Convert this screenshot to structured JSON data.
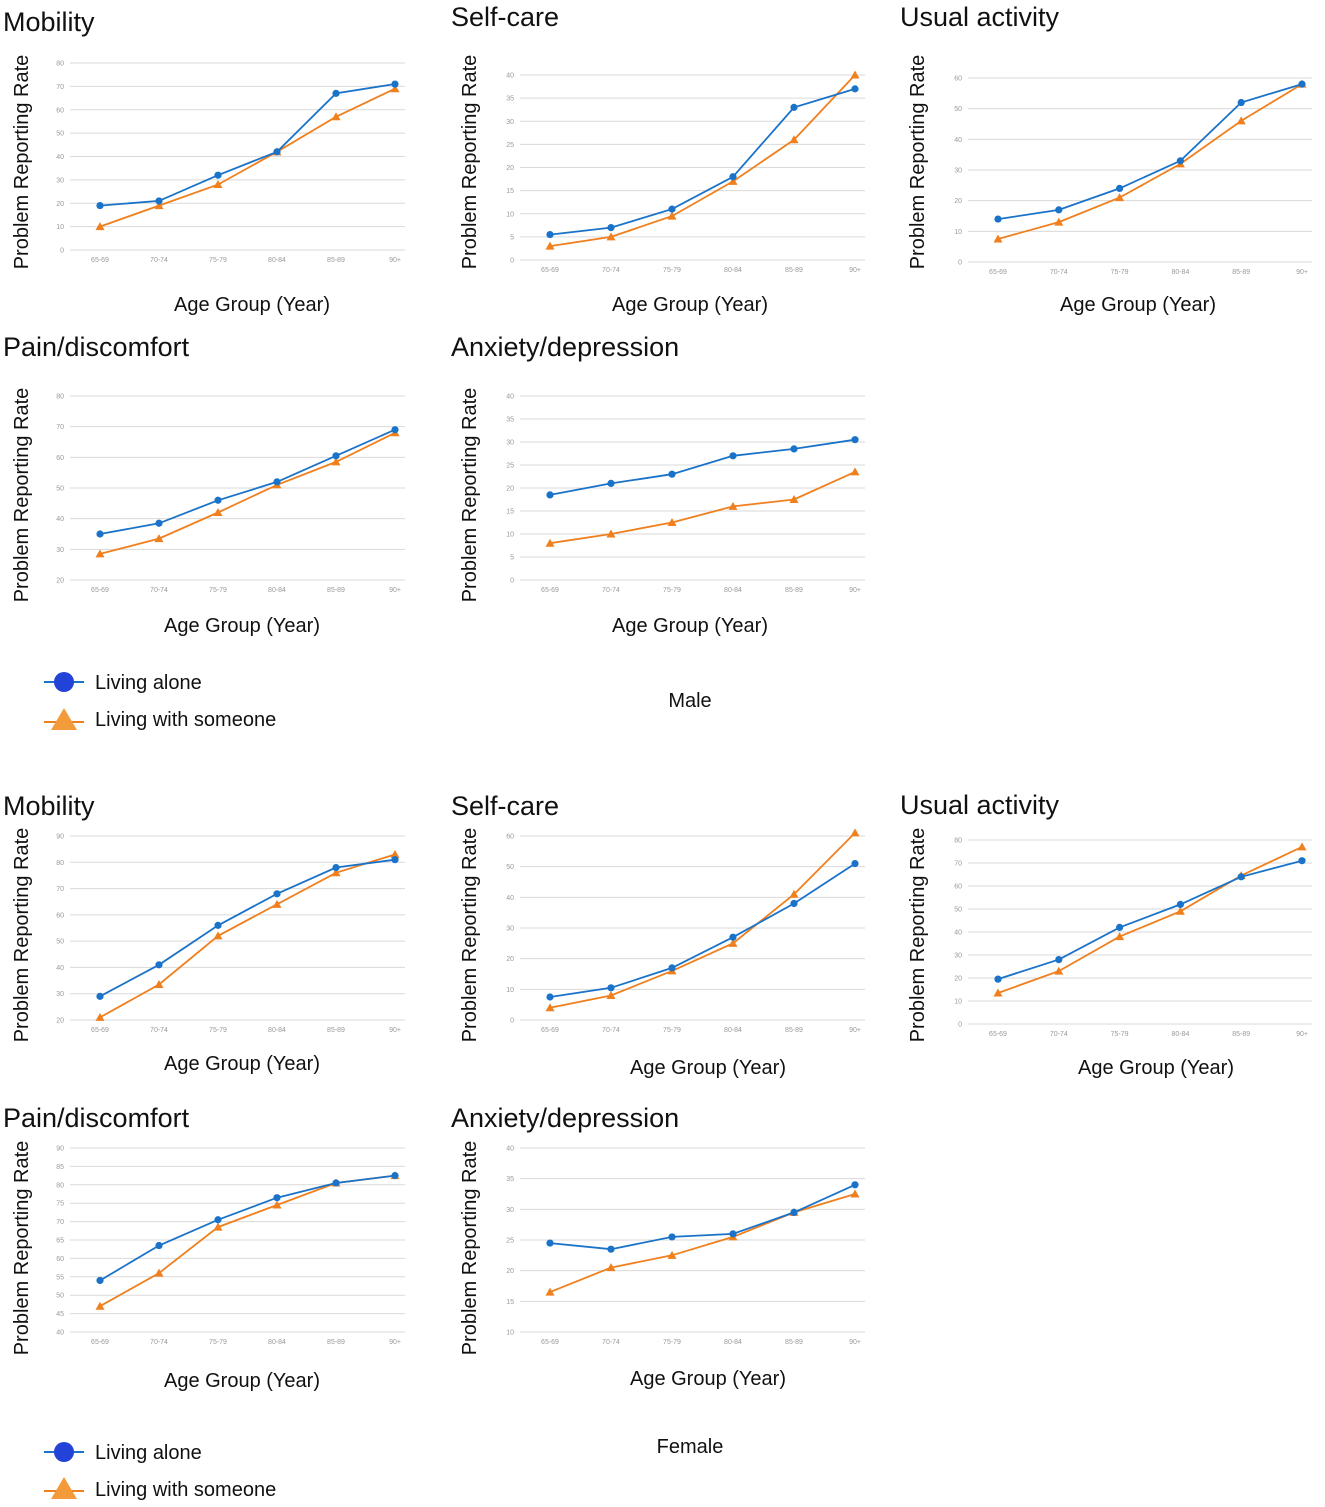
{
  "figure": {
    "legend": {
      "living_alone": "Living alone",
      "living_with_someone": "Living with someone"
    },
    "colors": {
      "living_alone": "#1a73c8",
      "living_with_someone": "#f07f1e"
    },
    "group_captions": {
      "male": "Male",
      "female": "Female"
    }
  },
  "chart_data": [
    {
      "id": "male-mobility",
      "group": "Male",
      "type": "line",
      "title": "Mobility",
      "xlabel": "Age Group (Year)",
      "ylabel": "Problem Reporting Rate",
      "categories": [
        "65-69",
        "70-74",
        "75-79",
        "80-84",
        "85-89",
        "90+"
      ],
      "ylim": [
        0,
        80
      ],
      "yticks": [
        0,
        10,
        20,
        30,
        40,
        50,
        60,
        70,
        80
      ],
      "series": [
        {
          "name": "Living alone",
          "values": [
            19,
            21,
            32,
            42,
            67,
            71
          ]
        },
        {
          "name": "Living with someone",
          "values": [
            10,
            19,
            28,
            42,
            57,
            69
          ]
        }
      ]
    },
    {
      "id": "male-self-care",
      "group": "Male",
      "type": "line",
      "title": "Self-care",
      "xlabel": "Age Group (Year)",
      "ylabel": "Problem Reporting Rate",
      "categories": [
        "65-69",
        "70-74",
        "75-79",
        "80-84",
        "85-89",
        "90+"
      ],
      "ylim": [
        0,
        40
      ],
      "yticks": [
        0,
        5,
        10,
        15,
        20,
        25,
        30,
        35,
        40
      ],
      "series": [
        {
          "name": "Living alone",
          "values": [
            5.5,
            7,
            11,
            18,
            33,
            37
          ]
        },
        {
          "name": "Living with someone",
          "values": [
            3,
            5,
            9.5,
            17,
            26,
            40
          ]
        }
      ]
    },
    {
      "id": "male-usual-activity",
      "group": "Male",
      "type": "line",
      "title": "Usual activity",
      "xlabel": "Age Group (Year)",
      "ylabel": "Problem Reporting Rate",
      "categories": [
        "65-69",
        "70-74",
        "75-79",
        "80-84",
        "85-89",
        "90+"
      ],
      "ylim": [
        0,
        60
      ],
      "yticks": [
        0,
        10,
        20,
        30,
        40,
        50,
        60
      ],
      "series": [
        {
          "name": "Living alone",
          "values": [
            14,
            17,
            24,
            33,
            52,
            58
          ]
        },
        {
          "name": "Living with someone",
          "values": [
            7.5,
            13,
            21,
            32,
            46,
            58
          ]
        }
      ]
    },
    {
      "id": "male-pain-discomfort",
      "group": "Male",
      "type": "line",
      "title": "Pain/discomfort",
      "xlabel": "Age Group (Year)",
      "ylabel": "Problem Reporting Rate",
      "categories": [
        "65-69",
        "70-74",
        "75-79",
        "80-84",
        "85-89",
        "90+"
      ],
      "ylim": [
        20,
        80
      ],
      "yticks": [
        20,
        30,
        40,
        50,
        60,
        70,
        80
      ],
      "series": [
        {
          "name": "Living alone",
          "values": [
            35,
            38.5,
            46,
            52,
            60.5,
            69
          ]
        },
        {
          "name": "Living with someone",
          "values": [
            28.5,
            33.5,
            42,
            51,
            58.5,
            68
          ]
        }
      ]
    },
    {
      "id": "male-anxiety-depression",
      "group": "Male",
      "type": "line",
      "title": "Anxiety/depression",
      "xlabel": "Age Group (Year)",
      "ylabel": "Problem Reporting Rate",
      "categories": [
        "65-69",
        "70-74",
        "75-79",
        "80-84",
        "85-89",
        "90+"
      ],
      "ylim": [
        0,
        40
      ],
      "yticks": [
        0,
        5,
        10,
        15,
        20,
        25,
        30,
        35,
        40
      ],
      "series": [
        {
          "name": "Living alone",
          "values": [
            18.5,
            21,
            23,
            27,
            28.5,
            30.5
          ]
        },
        {
          "name": "Living with someone",
          "values": [
            8,
            10,
            12.5,
            16,
            17.5,
            23.5
          ]
        }
      ]
    },
    {
      "id": "female-mobility",
      "group": "Female",
      "type": "line",
      "title": "Mobility",
      "xlabel": "Age Group (Year)",
      "ylabel": "Problem Reporting Rate",
      "categories": [
        "65-69",
        "70-74",
        "75-79",
        "80-84",
        "85-89",
        "90+"
      ],
      "ylim": [
        20,
        90
      ],
      "yticks": [
        20,
        30,
        40,
        50,
        60,
        70,
        80,
        90
      ],
      "series": [
        {
          "name": "Living alone",
          "values": [
            29,
            41,
            56,
            68,
            78,
            81
          ]
        },
        {
          "name": "Living with someone",
          "values": [
            21,
            33.5,
            52,
            64,
            76,
            83
          ]
        }
      ]
    },
    {
      "id": "female-self-care",
      "group": "Female",
      "type": "line",
      "title": "Self-care",
      "xlabel": "Age Group (Year)",
      "ylabel": "Problem Reporting Rate",
      "categories": [
        "65-69",
        "70-74",
        "75-79",
        "80-84",
        "85-89",
        "90+"
      ],
      "ylim": [
        0,
        60
      ],
      "yticks": [
        0,
        10,
        20,
        30,
        40,
        50,
        60
      ],
      "series": [
        {
          "name": "Living alone",
          "values": [
            7.5,
            10.5,
            17,
            27,
            38,
            51
          ]
        },
        {
          "name": "Living with someone",
          "values": [
            4,
            8,
            16,
            25,
            41,
            61
          ]
        }
      ]
    },
    {
      "id": "female-usual-activity",
      "group": "Female",
      "type": "line",
      "title": "Usual activity",
      "xlabel": "Age Group (Year)",
      "ylabel": "Problem Reporting Rate",
      "categories": [
        "65-69",
        "70-74",
        "75-79",
        "80-84",
        "85-89",
        "90+"
      ],
      "ylim": [
        0,
        80
      ],
      "yticks": [
        0,
        10,
        20,
        30,
        40,
        50,
        60,
        70,
        80
      ],
      "series": [
        {
          "name": "Living alone",
          "values": [
            19.5,
            28,
            42,
            52,
            64,
            71
          ]
        },
        {
          "name": "Living with someone",
          "values": [
            13.5,
            23,
            38,
            49,
            64.5,
            77
          ]
        }
      ]
    },
    {
      "id": "female-pain-discomfort",
      "group": "Female",
      "type": "line",
      "title": "Pain/discomfort",
      "xlabel": "Age Group (Year)",
      "ylabel": "Problem Reporting Rate",
      "categories": [
        "65-69",
        "70-74",
        "75-79",
        "80-84",
        "85-89",
        "90+"
      ],
      "ylim": [
        40,
        90
      ],
      "yticks": [
        40,
        45,
        50,
        55,
        60,
        65,
        70,
        75,
        80,
        85,
        90
      ],
      "series": [
        {
          "name": "Living alone",
          "values": [
            54,
            63.5,
            70.5,
            76.5,
            80.5,
            82.5
          ]
        },
        {
          "name": "Living with someone",
          "values": [
            47,
            56,
            68.5,
            74.5,
            80.5,
            82.5
          ]
        }
      ]
    },
    {
      "id": "female-anxiety-depression",
      "group": "Female",
      "type": "line",
      "title": "Anxiety/depression",
      "xlabel": "Age Group (Year)",
      "ylabel": "Problem Reporting Rate",
      "categories": [
        "65-69",
        "70-74",
        "75-79",
        "80-84",
        "85-89",
        "90+"
      ],
      "ylim": [
        10,
        40
      ],
      "yticks": [
        10,
        15,
        20,
        25,
        30,
        35,
        40
      ],
      "series": [
        {
          "name": "Living alone",
          "values": [
            24.5,
            23.5,
            25.5,
            26,
            29.5,
            34
          ]
        },
        {
          "name": "Living with someone",
          "values": [
            16.5,
            20.5,
            22.5,
            25.5,
            29.5,
            32.5
          ]
        }
      ]
    }
  ]
}
